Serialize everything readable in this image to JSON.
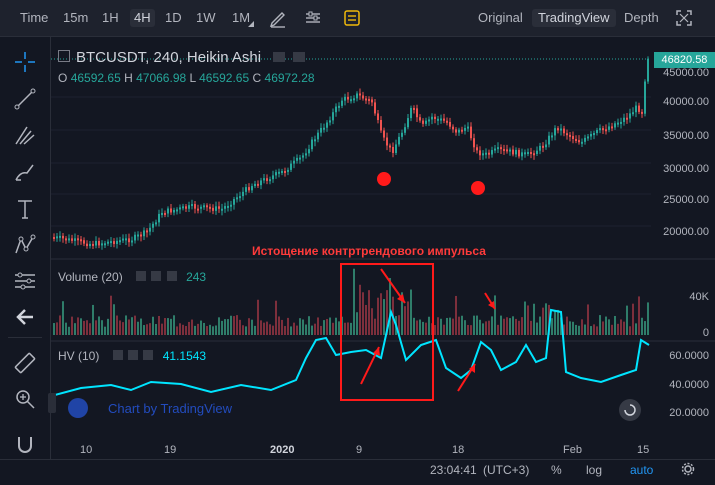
{
  "toolbar": {
    "intervals": [
      "Time",
      "15m",
      "1H",
      "4H",
      "1D",
      "1W",
      "1M"
    ],
    "active_interval": "4H",
    "views": [
      "Original",
      "TradingView",
      "Depth"
    ],
    "active_view": "TradingView",
    "icons": [
      "pencil-icon",
      "indicators-icon",
      "templates-icon",
      "fullscreen-icon"
    ]
  },
  "left_toolbar": {
    "icons": [
      "crosshair-icon",
      "trend-line-icon",
      "pitchfork-icon",
      "brush-icon",
      "text-icon",
      "pattern-icon",
      "measure-icon",
      "arrow-left-icon",
      "ruler-icon",
      "zoom-icon",
      "magnet-icon",
      "collapse-icon"
    ]
  },
  "main": {
    "title": "BTCUSDT, 240, Heikin Ashi",
    "o_label": "O",
    "o_value": "46592.65",
    "h_label": "H",
    "h_value": "47066.98",
    "l_label": "L",
    "l_value": "46592.65",
    "c_label": "C",
    "c_value": "46972.28",
    "last_price": "46820.58",
    "price_axis": [
      "45000.00",
      "40000.00",
      "35000.00",
      "30000.00",
      "25000.00",
      "20000.00"
    ]
  },
  "volume": {
    "title": "Volume (20)",
    "value": "243",
    "axis": [
      "40K",
      "0"
    ]
  },
  "hv": {
    "title": "HV (10)",
    "value": "41.1543",
    "axis": [
      "60.0000",
      "40.0000",
      "20.0000"
    ]
  },
  "annotation": {
    "text": "Истощение контртрендового импульса"
  },
  "watermark": "Chart by TradingView",
  "time_axis": [
    "10",
    "19",
    "2020",
    "9",
    "18",
    "Feb",
    "15"
  ],
  "status": {
    "clock": "23:04:41",
    "tz": "(UTC+3)",
    "percent": "%",
    "log": "log",
    "auto": "auto"
  },
  "colors": {
    "up": "#26a69a",
    "down": "#ef5350",
    "hv_line": "#00e5ff",
    "annotation": "#ff2a2a",
    "background": "#131722"
  },
  "chart_data": {
    "type": "candlestick",
    "y_range": [
      15000,
      48000
    ],
    "volume_range": [
      0,
      60000
    ],
    "hv_range": [
      10,
      70
    ]
  }
}
